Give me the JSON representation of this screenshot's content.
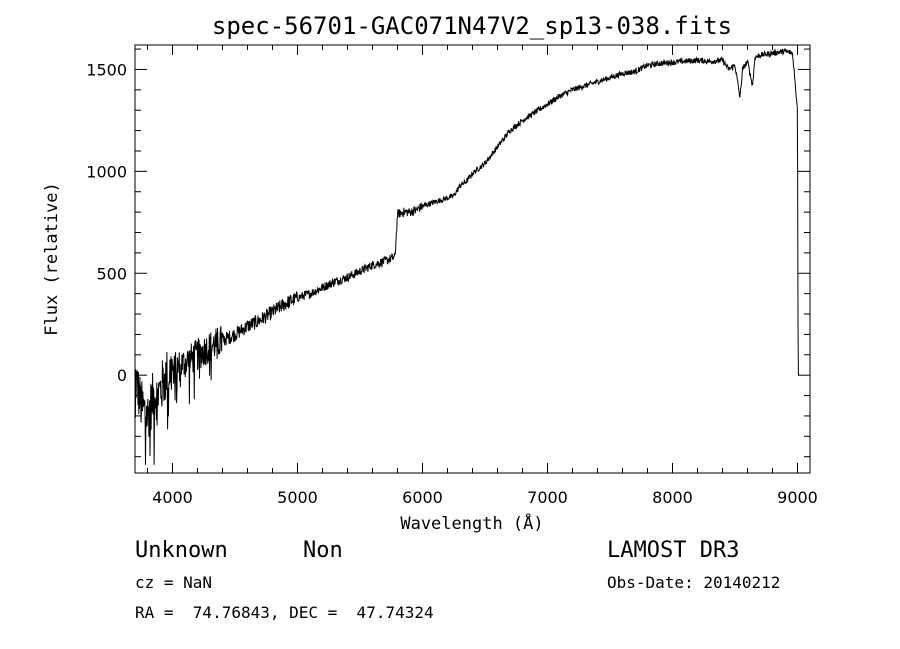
{
  "chart_data": {
    "type": "line",
    "title": "spec-56701-GAC071N47V2_sp13-038.fits",
    "xlabel": "Wavelength (Å)",
    "ylabel": "Flux (relative)",
    "xlim": [
      3700,
      9100
    ],
    "ylim": [
      -480,
      1620
    ],
    "x_ticks": [
      4000,
      5000,
      6000,
      7000,
      8000,
      9000
    ],
    "y_ticks": [
      0,
      500,
      1000,
      1500
    ],
    "grid": false,
    "series": [
      {
        "x": [
          3700,
          3750,
          3800,
          3850,
          3900,
          3950,
          4000,
          4100,
          4200,
          4300,
          4400,
          4500,
          4600,
          4700,
          4800,
          4900,
          5000,
          5100,
          5200,
          5300,
          5400,
          5500,
          5600,
          5700,
          5780,
          5800,
          5850,
          5900,
          5950,
          6000,
          6100,
          6200,
          6250,
          6300,
          6350,
          6400,
          6500,
          6600,
          6700,
          6800,
          6900,
          7000,
          7100,
          7200,
          7300,
          7400,
          7500,
          7600,
          7700,
          7800,
          7900,
          8000,
          8100,
          8200,
          8300,
          8400,
          8450,
          8500,
          8540,
          8560,
          8600,
          8640,
          8660,
          8700,
          8800,
          8900,
          8960,
          9000,
          9005,
          9010
        ],
        "y": [
          0,
          -150,
          -200,
          -100,
          -80,
          0,
          30,
          60,
          100,
          140,
          170,
          200,
          240,
          270,
          310,
          350,
          380,
          400,
          430,
          460,
          480,
          510,
          540,
          560,
          580,
          790,
          800,
          800,
          810,
          830,
          850,
          870,
          880,
          930,
          950,
          990,
          1040,
          1120,
          1200,
          1250,
          1290,
          1330,
          1370,
          1400,
          1420,
          1440,
          1460,
          1480,
          1490,
          1520,
          1530,
          1535,
          1540,
          1545,
          1540,
          1545,
          1500,
          1520,
          1360,
          1500,
          1540,
          1420,
          1560,
          1570,
          1580,
          1590,
          1580,
          1300,
          0,
          0
        ]
      }
    ]
  },
  "info": {
    "object_class": "Unknown",
    "subclass": "Non",
    "survey": "LAMOST DR3",
    "cz": "cz = NaN",
    "obs_date": "Obs-Date: 20140212",
    "coords": "RA =  74.76843, DEC =  47.74324"
  }
}
